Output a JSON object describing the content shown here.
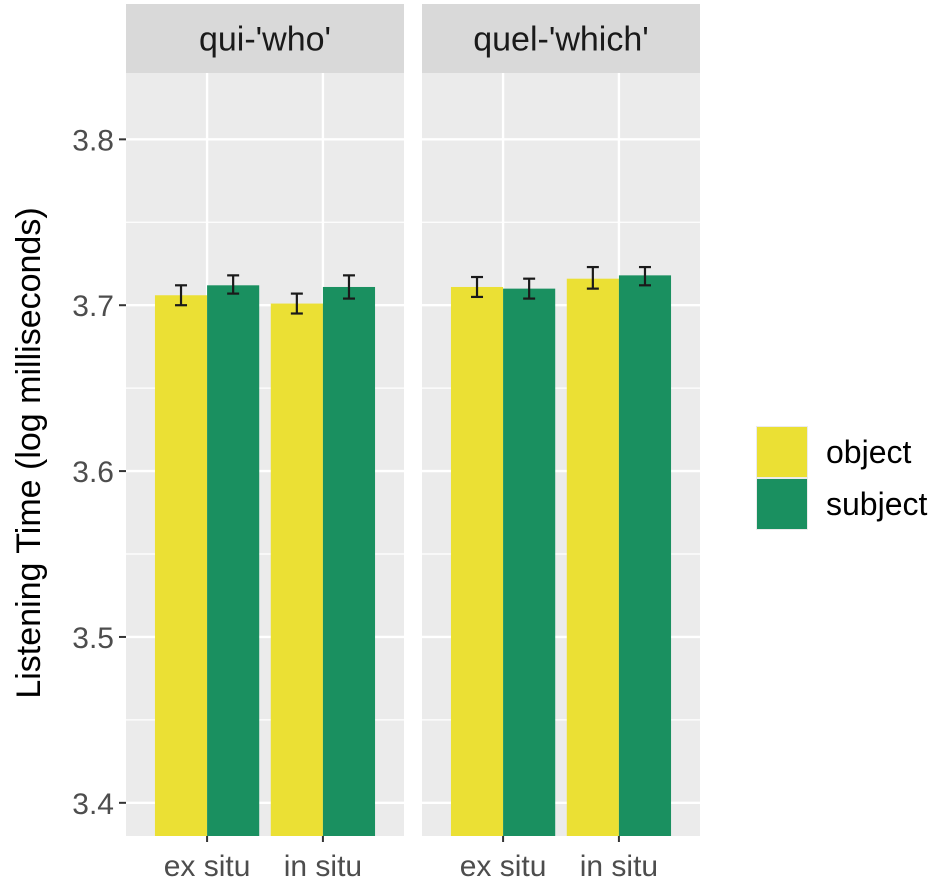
{
  "chart_data": {
    "type": "bar",
    "ylabel": "Listening Time (log milliseconds)",
    "xlabel": "",
    "ylim": [
      3.38,
      3.84
    ],
    "yticks": [
      3.4,
      3.5,
      3.6,
      3.7,
      3.8
    ],
    "ytick_labels": [
      "3.4",
      "3.5",
      "3.6",
      "3.7",
      "3.8"
    ],
    "grid": true,
    "legend_position": "right",
    "categories": [
      "ex situ",
      "in situ"
    ],
    "panels": [
      {
        "title": "qui-'who'",
        "series": [
          {
            "name": "object",
            "values": [
              3.706,
              3.701
            ],
            "err_low": [
              3.7,
              3.695
            ],
            "err_high": [
              3.712,
              3.707
            ]
          },
          {
            "name": "subject",
            "values": [
              3.712,
              3.711
            ],
            "err_low": [
              3.707,
              3.704
            ],
            "err_high": [
              3.718,
              3.718
            ]
          }
        ]
      },
      {
        "title": "quel-'which'",
        "series": [
          {
            "name": "object",
            "values": [
              3.711,
              3.716
            ],
            "err_low": [
              3.705,
              3.71
            ],
            "err_high": [
              3.717,
              3.723
            ]
          },
          {
            "name": "subject",
            "values": [
              3.71,
              3.718
            ],
            "err_low": [
              3.704,
              3.712
            ],
            "err_high": [
              3.716,
              3.723
            ]
          }
        ]
      }
    ],
    "legend": [
      {
        "label": "object",
        "color": "#ebe034"
      },
      {
        "label": "subject",
        "color": "#1a9060"
      }
    ]
  },
  "colors": {
    "object": "#ebe034",
    "subject": "#1a9060",
    "panel_bg": "#ebebeb",
    "strip_bg": "#d9d9d9",
    "grid": "#ffffff"
  }
}
